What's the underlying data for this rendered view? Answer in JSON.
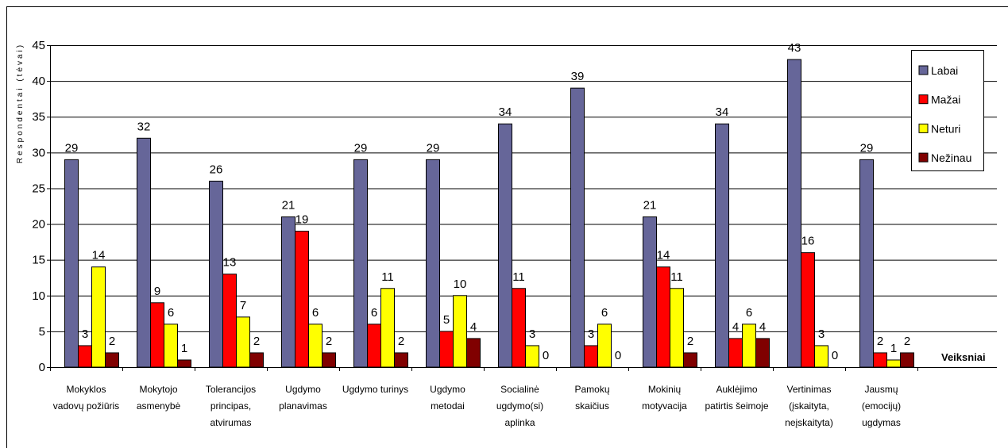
{
  "chart_data": {
    "type": "bar",
    "y_label": "Respondentai (tėvai)",
    "x_label": "Veiksniai",
    "categories": [
      "Mokyklos vadovų požiūris",
      "Mokytojo asmenybė",
      "Tolerancijos principas, atvirumas",
      "Ugdymo planavimas",
      "Ugdymo turinys",
      "Ugdymo metodai",
      "Socialinė ugdymo(si) aplinka",
      "Pamokų skaičius",
      "Mokinių motyvacija",
      "Auklėjimo patirtis šeimoje",
      "Vertinimas (įskaityta, neįskaityta)",
      "Jausmų (emocijų) ugdymas"
    ],
    "series": [
      {
        "name": "Labai",
        "color": "#666699",
        "values": [
          29,
          32,
          26,
          21,
          29,
          29,
          34,
          39,
          21,
          34,
          43,
          29
        ]
      },
      {
        "name": "Mažai",
        "color": "#ff0000",
        "values": [
          3,
          9,
          13,
          19,
          6,
          5,
          11,
          3,
          14,
          4,
          16,
          2
        ]
      },
      {
        "name": "Neturi",
        "color": "#ffff00",
        "values": [
          14,
          6,
          7,
          6,
          11,
          10,
          3,
          6,
          11,
          6,
          3,
          1
        ]
      },
      {
        "name": "Nežinau",
        "color": "#800000",
        "values": [
          2,
          1,
          2,
          2,
          2,
          4,
          0,
          0,
          2,
          4,
          0,
          2
        ]
      }
    ],
    "ylim": [
      0,
      45
    ],
    "yticks": [
      0,
      5,
      10,
      15,
      20,
      25,
      30,
      35,
      40,
      45
    ],
    "grid": true,
    "legend": "right"
  }
}
